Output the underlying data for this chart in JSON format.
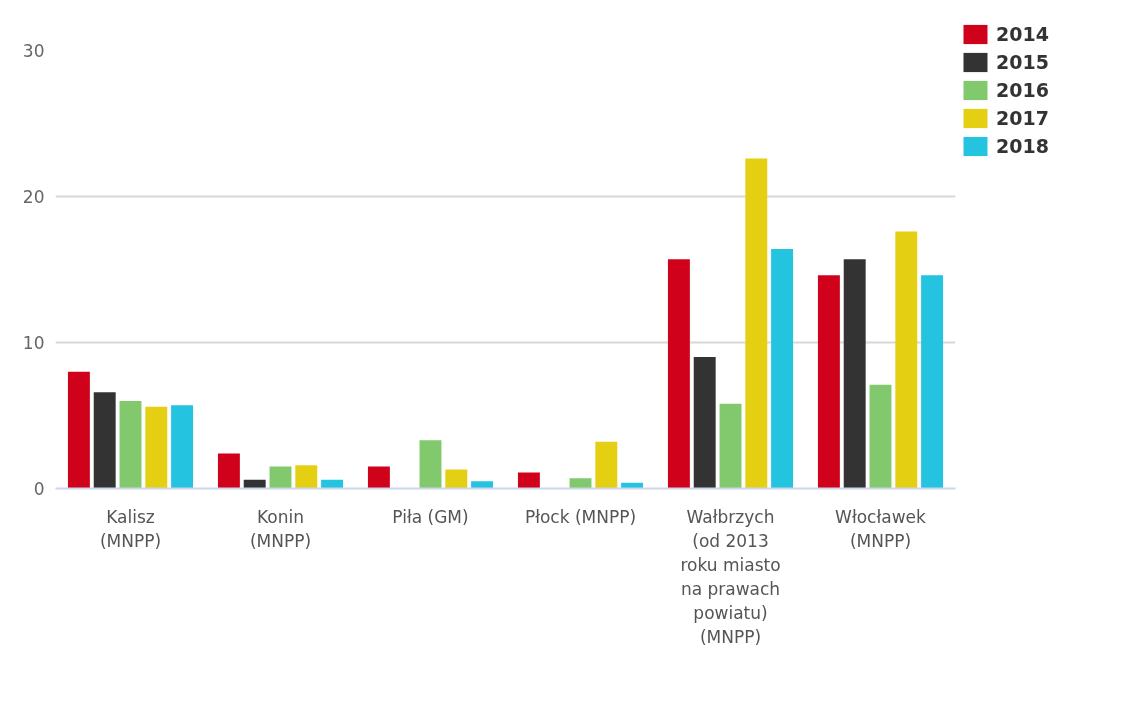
{
  "chart_data": {
    "type": "bar",
    "categories": [
      "Kalisz\n(MNPP)",
      "Konin\n(MNPP)",
      "Piła (GM)",
      "Płock (MNPP)",
      "Wałbrzych\n(od 2013\nroku miasto\nna prawach\npowiatu)\n(MNPP)",
      "Włocławek\n(MNPP)"
    ],
    "series": [
      {
        "name": "2014",
        "color": "#d0021b",
        "values": [
          8.0,
          2.4,
          1.5,
          1.1,
          15.7,
          14.6
        ]
      },
      {
        "name": "2015",
        "color": "#333333",
        "values": [
          6.6,
          0.6,
          null,
          null,
          9.0,
          15.7
        ]
      },
      {
        "name": "2016",
        "color": "#82c96e",
        "values": [
          6.0,
          1.5,
          3.3,
          0.7,
          5.8,
          7.1
        ]
      },
      {
        "name": "2017",
        "color": "#e5cf12",
        "values": [
          5.6,
          1.6,
          1.3,
          3.2,
          22.6,
          17.6
        ]
      },
      {
        "name": "2018",
        "color": "#24c3df",
        "values": [
          5.7,
          0.6,
          0.5,
          0.4,
          16.4,
          14.6
        ]
      }
    ],
    "ylim": [
      0,
      30
    ],
    "yticks": [
      0,
      10,
      20,
      30
    ],
    "grid": "y",
    "legend": "top right"
  }
}
